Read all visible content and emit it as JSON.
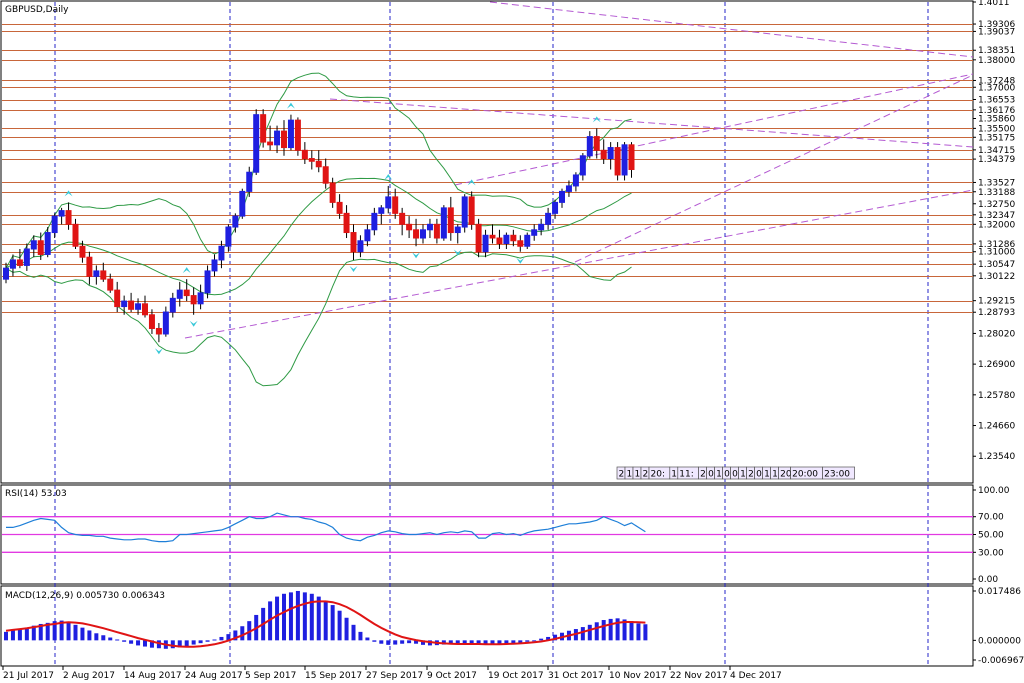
{
  "window": {
    "title": "GBPUSD,Daily"
  },
  "colors": {
    "background": "#ffffff",
    "bull_candle": "#1f1fe0",
    "bear_candle": "#e01414",
    "level_line": "#c8663a",
    "trendline": "#b45ad2",
    "bollinger": "#2e9a44",
    "fractal_arrow": "#38c8d8",
    "separator": "#2424c8",
    "rsi_line": "#1e7fd8",
    "rsi_level": "#e23ae2",
    "macd_hist": "#1f1fe0",
    "macd_signal": "#e01414",
    "time_box_fill": "#f0e8ff"
  },
  "time_box": {
    "digits": [
      "2",
      "1",
      "1",
      "2",
      "20:",
      "1",
      "11:",
      "2",
      "0",
      "1",
      "0",
      "0",
      "1",
      "2",
      "0",
      "1",
      "1",
      "20",
      "20:00",
      "23:00"
    ]
  },
  "chart_data": [
    {
      "type": "candlestick",
      "title": "GBPUSD,Daily",
      "symbol": "GBPUSD",
      "timeframe": "Daily",
      "ylim": [
        1.226,
        1.4011
      ],
      "y_tick_labels": [
        "1.4011",
        "1.39306",
        "1.39037",
        "1.38351",
        "1.38000",
        "1.37248",
        "1.37000",
        "1.36553",
        "1.36176",
        "1.35860",
        "1.35500",
        "1.35175",
        "1.34715",
        "1.34379",
        "1.33527",
        "1.33188",
        "1.32750",
        "1.32347",
        "1.32000",
        "1.31286",
        "1.31000",
        "1.30547",
        "1.30122",
        "1.29215",
        "1.28793",
        "1.28020",
        "1.26900",
        "1.25780",
        "1.24660",
        "1.23540"
      ],
      "price_levels": [
        1.39306,
        1.39037,
        1.38351,
        1.38,
        1.37248,
        1.37,
        1.36553,
        1.36176,
        1.355,
        1.35175,
        1.34715,
        1.34379,
        1.33527,
        1.33188,
        1.32347,
        1.32,
        1.31286,
        1.31,
        1.30547,
        1.30122,
        1.29215,
        1.28793
      ],
      "x_tick_labels": [
        "21 Jul 2017",
        "2 Aug 2017",
        "14 Aug 2017",
        "24 Aug 2017",
        "5 Sep 2017",
        "15 Sep 2017",
        "27 Sep 2017",
        "9 Oct 2017",
        "19 Oct 2017",
        "31 Oct 2017",
        "10 Nov 2017",
        "22 Nov 2017",
        "4 Dec 2017"
      ],
      "candles_ohlc": [
        [
          1.3,
          1.306,
          1.2985,
          1.304
        ],
        [
          1.304,
          1.309,
          1.301,
          1.307
        ],
        [
          1.307,
          1.311,
          1.304,
          1.305
        ],
        [
          1.305,
          1.313,
          1.303,
          1.311
        ],
        [
          1.311,
          1.316,
          1.308,
          1.314
        ],
        [
          1.314,
          1.317,
          1.307,
          1.309
        ],
        [
          1.309,
          1.319,
          1.308,
          1.317
        ],
        [
          1.317,
          1.324,
          1.315,
          1.323
        ],
        [
          1.323,
          1.326,
          1.32,
          1.325
        ],
        [
          1.325,
          1.328,
          1.318,
          1.32
        ],
        [
          1.32,
          1.322,
          1.311,
          1.312
        ],
        [
          1.312,
          1.314,
          1.306,
          1.308
        ],
        [
          1.308,
          1.31,
          1.298,
          1.301
        ],
        [
          1.301,
          1.305,
          1.298,
          1.303
        ],
        [
          1.303,
          1.306,
          1.299,
          1.3
        ],
        [
          1.3,
          1.302,
          1.295,
          1.296
        ],
        [
          1.296,
          1.299,
          1.288,
          1.29
        ],
        [
          1.29,
          1.294,
          1.287,
          1.292
        ],
        [
          1.292,
          1.295,
          1.288,
          1.289
        ],
        [
          1.289,
          1.293,
          1.287,
          1.291
        ],
        [
          1.291,
          1.294,
          1.286,
          1.287
        ],
        [
          1.287,
          1.289,
          1.28,
          1.282
        ],
        [
          1.282,
          1.284,
          1.277,
          1.28
        ],
        [
          1.28,
          1.29,
          1.279,
          1.288
        ],
        [
          1.288,
          1.295,
          1.286,
          1.293
        ],
        [
          1.293,
          1.299,
          1.29,
          1.296
        ],
        [
          1.296,
          1.3,
          1.292,
          1.294
        ],
        [
          1.294,
          1.297,
          1.287,
          1.291
        ],
        [
          1.291,
          1.298,
          1.289,
          1.295
        ],
        [
          1.295,
          1.305,
          1.293,
          1.303
        ],
        [
          1.303,
          1.309,
          1.301,
          1.307
        ],
        [
          1.307,
          1.314,
          1.304,
          1.312
        ],
        [
          1.312,
          1.32,
          1.31,
          1.319
        ],
        [
          1.319,
          1.324,
          1.317,
          1.323
        ],
        [
          1.323,
          1.333,
          1.322,
          1.332
        ],
        [
          1.332,
          1.341,
          1.33,
          1.339
        ],
        [
          1.339,
          1.362,
          1.338,
          1.36
        ],
        [
          1.36,
          1.362,
          1.348,
          1.35
        ],
        [
          1.35,
          1.356,
          1.347,
          1.349
        ],
        [
          1.349,
          1.356,
          1.346,
          1.354
        ],
        [
          1.354,
          1.358,
          1.345,
          1.348
        ],
        [
          1.348,
          1.36,
          1.347,
          1.358
        ],
        [
          1.358,
          1.359,
          1.345,
          1.347
        ],
        [
          1.347,
          1.35,
          1.342,
          1.344
        ],
        [
          1.344,
          1.347,
          1.34,
          1.343
        ],
        [
          1.343,
          1.347,
          1.339,
          1.341
        ],
        [
          1.341,
          1.344,
          1.333,
          1.335
        ],
        [
          1.335,
          1.337,
          1.326,
          1.328
        ],
        [
          1.328,
          1.331,
          1.322,
          1.324
        ],
        [
          1.324,
          1.327,
          1.315,
          1.317
        ],
        [
          1.317,
          1.32,
          1.307,
          1.31
        ],
        [
          1.31,
          1.316,
          1.308,
          1.314
        ],
        [
          1.314,
          1.32,
          1.312,
          1.318
        ],
        [
          1.318,
          1.326,
          1.316,
          1.324
        ],
        [
          1.324,
          1.327,
          1.32,
          1.326
        ],
        [
          1.326,
          1.334,
          1.324,
          1.33
        ],
        [
          1.33,
          1.333,
          1.322,
          1.324
        ],
        [
          1.324,
          1.326,
          1.316,
          1.32
        ],
        [
          1.32,
          1.323,
          1.315,
          1.318
        ],
        [
          1.318,
          1.322,
          1.312,
          1.315
        ],
        [
          1.315,
          1.32,
          1.313,
          1.318
        ],
        [
          1.318,
          1.322,
          1.315,
          1.32
        ],
        [
          1.32,
          1.322,
          1.313,
          1.315
        ],
        [
          1.315,
          1.327,
          1.314,
          1.326
        ],
        [
          1.326,
          1.33,
          1.314,
          1.317
        ],
        [
          1.317,
          1.32,
          1.313,
          1.319
        ],
        [
          1.319,
          1.331,
          1.317,
          1.33
        ],
        [
          1.33,
          1.332,
          1.318,
          1.32
        ],
        [
          1.32,
          1.322,
          1.308,
          1.31
        ],
        [
          1.31,
          1.318,
          1.308,
          1.316
        ],
        [
          1.316,
          1.32,
          1.313,
          1.315
        ],
        [
          1.315,
          1.318,
          1.311,
          1.313
        ],
        [
          1.313,
          1.317,
          1.311,
          1.316
        ],
        [
          1.316,
          1.318,
          1.312,
          1.314
        ],
        [
          1.314,
          1.316,
          1.31,
          1.312
        ],
        [
          1.312,
          1.317,
          1.311,
          1.316
        ],
        [
          1.316,
          1.32,
          1.314,
          1.318
        ],
        [
          1.318,
          1.322,
          1.316,
          1.32
        ],
        [
          1.32,
          1.326,
          1.318,
          1.324
        ],
        [
          1.324,
          1.329,
          1.322,
          1.328
        ],
        [
          1.328,
          1.333,
          1.326,
          1.332
        ],
        [
          1.332,
          1.336,
          1.33,
          1.334
        ],
        [
          1.334,
          1.339,
          1.332,
          1.338
        ],
        [
          1.338,
          1.346,
          1.336,
          1.345
        ],
        [
          1.345,
          1.354,
          1.344,
          1.352
        ],
        [
          1.352,
          1.355,
          1.344,
          1.347
        ],
        [
          1.347,
          1.351,
          1.342,
          1.344
        ],
        [
          1.344,
          1.35,
          1.34,
          1.348
        ],
        [
          1.348,
          1.35,
          1.336,
          1.338
        ],
        [
          1.338,
          1.35,
          1.336,
          1.349
        ],
        [
          1.349,
          1.35,
          1.337,
          1.34
        ]
      ],
      "rsi": {
        "label": "RSI(14) 53.03",
        "name": "RSI(14)",
        "last": 53.03,
        "ylim": [
          0,
          100
        ],
        "levels": [
          70,
          50,
          30
        ],
        "y_tick_labels": [
          "100.00",
          "70.00",
          "50.00",
          "30.00",
          "0.00"
        ],
        "values": [
          58,
          58,
          60,
          63,
          66,
          68,
          67,
          66,
          58,
          52,
          50,
          49,
          49,
          48,
          48,
          46,
          45,
          44,
          44,
          45,
          45,
          43,
          42,
          42,
          43,
          50,
          50,
          51,
          52,
          53,
          54,
          55,
          58,
          62,
          66,
          70,
          68,
          68,
          70,
          74,
          72,
          70,
          70,
          68,
          67,
          64,
          62,
          58,
          50,
          46,
          44,
          43,
          47,
          49,
          52,
          54,
          53,
          51,
          50,
          50,
          51,
          52,
          50,
          52,
          53,
          52,
          54,
          53,
          46,
          46,
          51,
          52,
          50,
          51,
          49,
          52,
          54,
          55,
          56,
          58,
          60,
          62,
          62,
          63,
          64,
          66,
          70,
          67,
          64,
          60,
          63,
          58,
          53.03
        ]
      },
      "macd": {
        "label": "MACD(12,26,9) 0.005730 0.006343",
        "name": "MACD(12,26,9)",
        "main": 0.00573,
        "signal": 0.006343,
        "ylim": [
          -0.006967,
          0.017486
        ],
        "y_tick_labels": [
          "0.017486",
          "0.000000",
          "-0.006967"
        ],
        "hist": [
          0.003,
          0.0035,
          0.004,
          0.0045,
          0.0052,
          0.0058,
          0.0062,
          0.0068,
          0.007,
          0.0065,
          0.0055,
          0.0045,
          0.0035,
          0.0025,
          0.0018,
          0.001,
          0.0003,
          -0.0005,
          -0.0012,
          -0.0018,
          -0.0022,
          -0.0026,
          -0.0028,
          -0.003,
          -0.0028,
          -0.0025,
          -0.002,
          -0.0015,
          -0.001,
          -0.0005,
          0.0003,
          0.0012,
          0.0022,
          0.0035,
          0.005,
          0.0068,
          0.009,
          0.0115,
          0.0138,
          0.0155,
          0.0165,
          0.017,
          0.0175,
          0.017,
          0.0165,
          0.0155,
          0.014,
          0.0125,
          0.0105,
          0.008,
          0.0055,
          0.003,
          0.001,
          -0.0005,
          -0.0012,
          -0.0016,
          -0.0015,
          -0.0012,
          -0.001,
          -0.0012,
          -0.0016,
          -0.0018,
          -0.0017,
          -0.0015,
          -0.0014,
          -0.0013,
          -0.0012,
          -0.0012,
          -0.0014,
          -0.0016,
          -0.0015,
          -0.0013,
          -0.0012,
          -0.001,
          -0.0008,
          -0.0005,
          0.0,
          0.0006,
          0.0012,
          0.002,
          0.0027,
          0.0034,
          0.004,
          0.0047,
          0.0055,
          0.0064,
          0.0072,
          0.0076,
          0.0078,
          0.0074,
          0.0068,
          0.006,
          0.0057
        ],
        "signal_line": [
          0.0034,
          0.0037,
          0.004,
          0.0043,
          0.0047,
          0.0051,
          0.0055,
          0.0058,
          0.0062,
          0.0064,
          0.0063,
          0.006,
          0.0055,
          0.0049,
          0.0043,
          0.0036,
          0.0029,
          0.0022,
          0.0015,
          0.0008,
          0.0002,
          -0.0004,
          -0.001,
          -0.0015,
          -0.0019,
          -0.0022,
          -0.0023,
          -0.0023,
          -0.0021,
          -0.0018,
          -0.0014,
          -0.0008,
          -0.0001,
          0.0008,
          0.0018,
          0.003,
          0.0043,
          0.0058,
          0.0073,
          0.0088,
          0.01,
          0.0112,
          0.0122,
          0.013,
          0.0136,
          0.0138,
          0.0138,
          0.0135,
          0.0128,
          0.0118,
          0.0105,
          0.009,
          0.0074,
          0.0058,
          0.0044,
          0.0032,
          0.0021,
          0.0012,
          0.0006,
          0.0001,
          -0.0003,
          -0.0006,
          -0.0009,
          -0.0011,
          -0.0012,
          -0.0013,
          -0.0013,
          -0.0013,
          -0.0013,
          -0.0014,
          -0.0014,
          -0.0014,
          -0.0013,
          -0.0012,
          -0.0011,
          -0.0009,
          -0.0007,
          -0.0004,
          0.0,
          0.0005,
          0.0011,
          0.0017,
          0.0023,
          0.003,
          0.0037,
          0.0044,
          0.0051,
          0.0057,
          0.0062,
          0.0065,
          0.0065,
          0.0064,
          0.0063
        ]
      }
    }
  ]
}
